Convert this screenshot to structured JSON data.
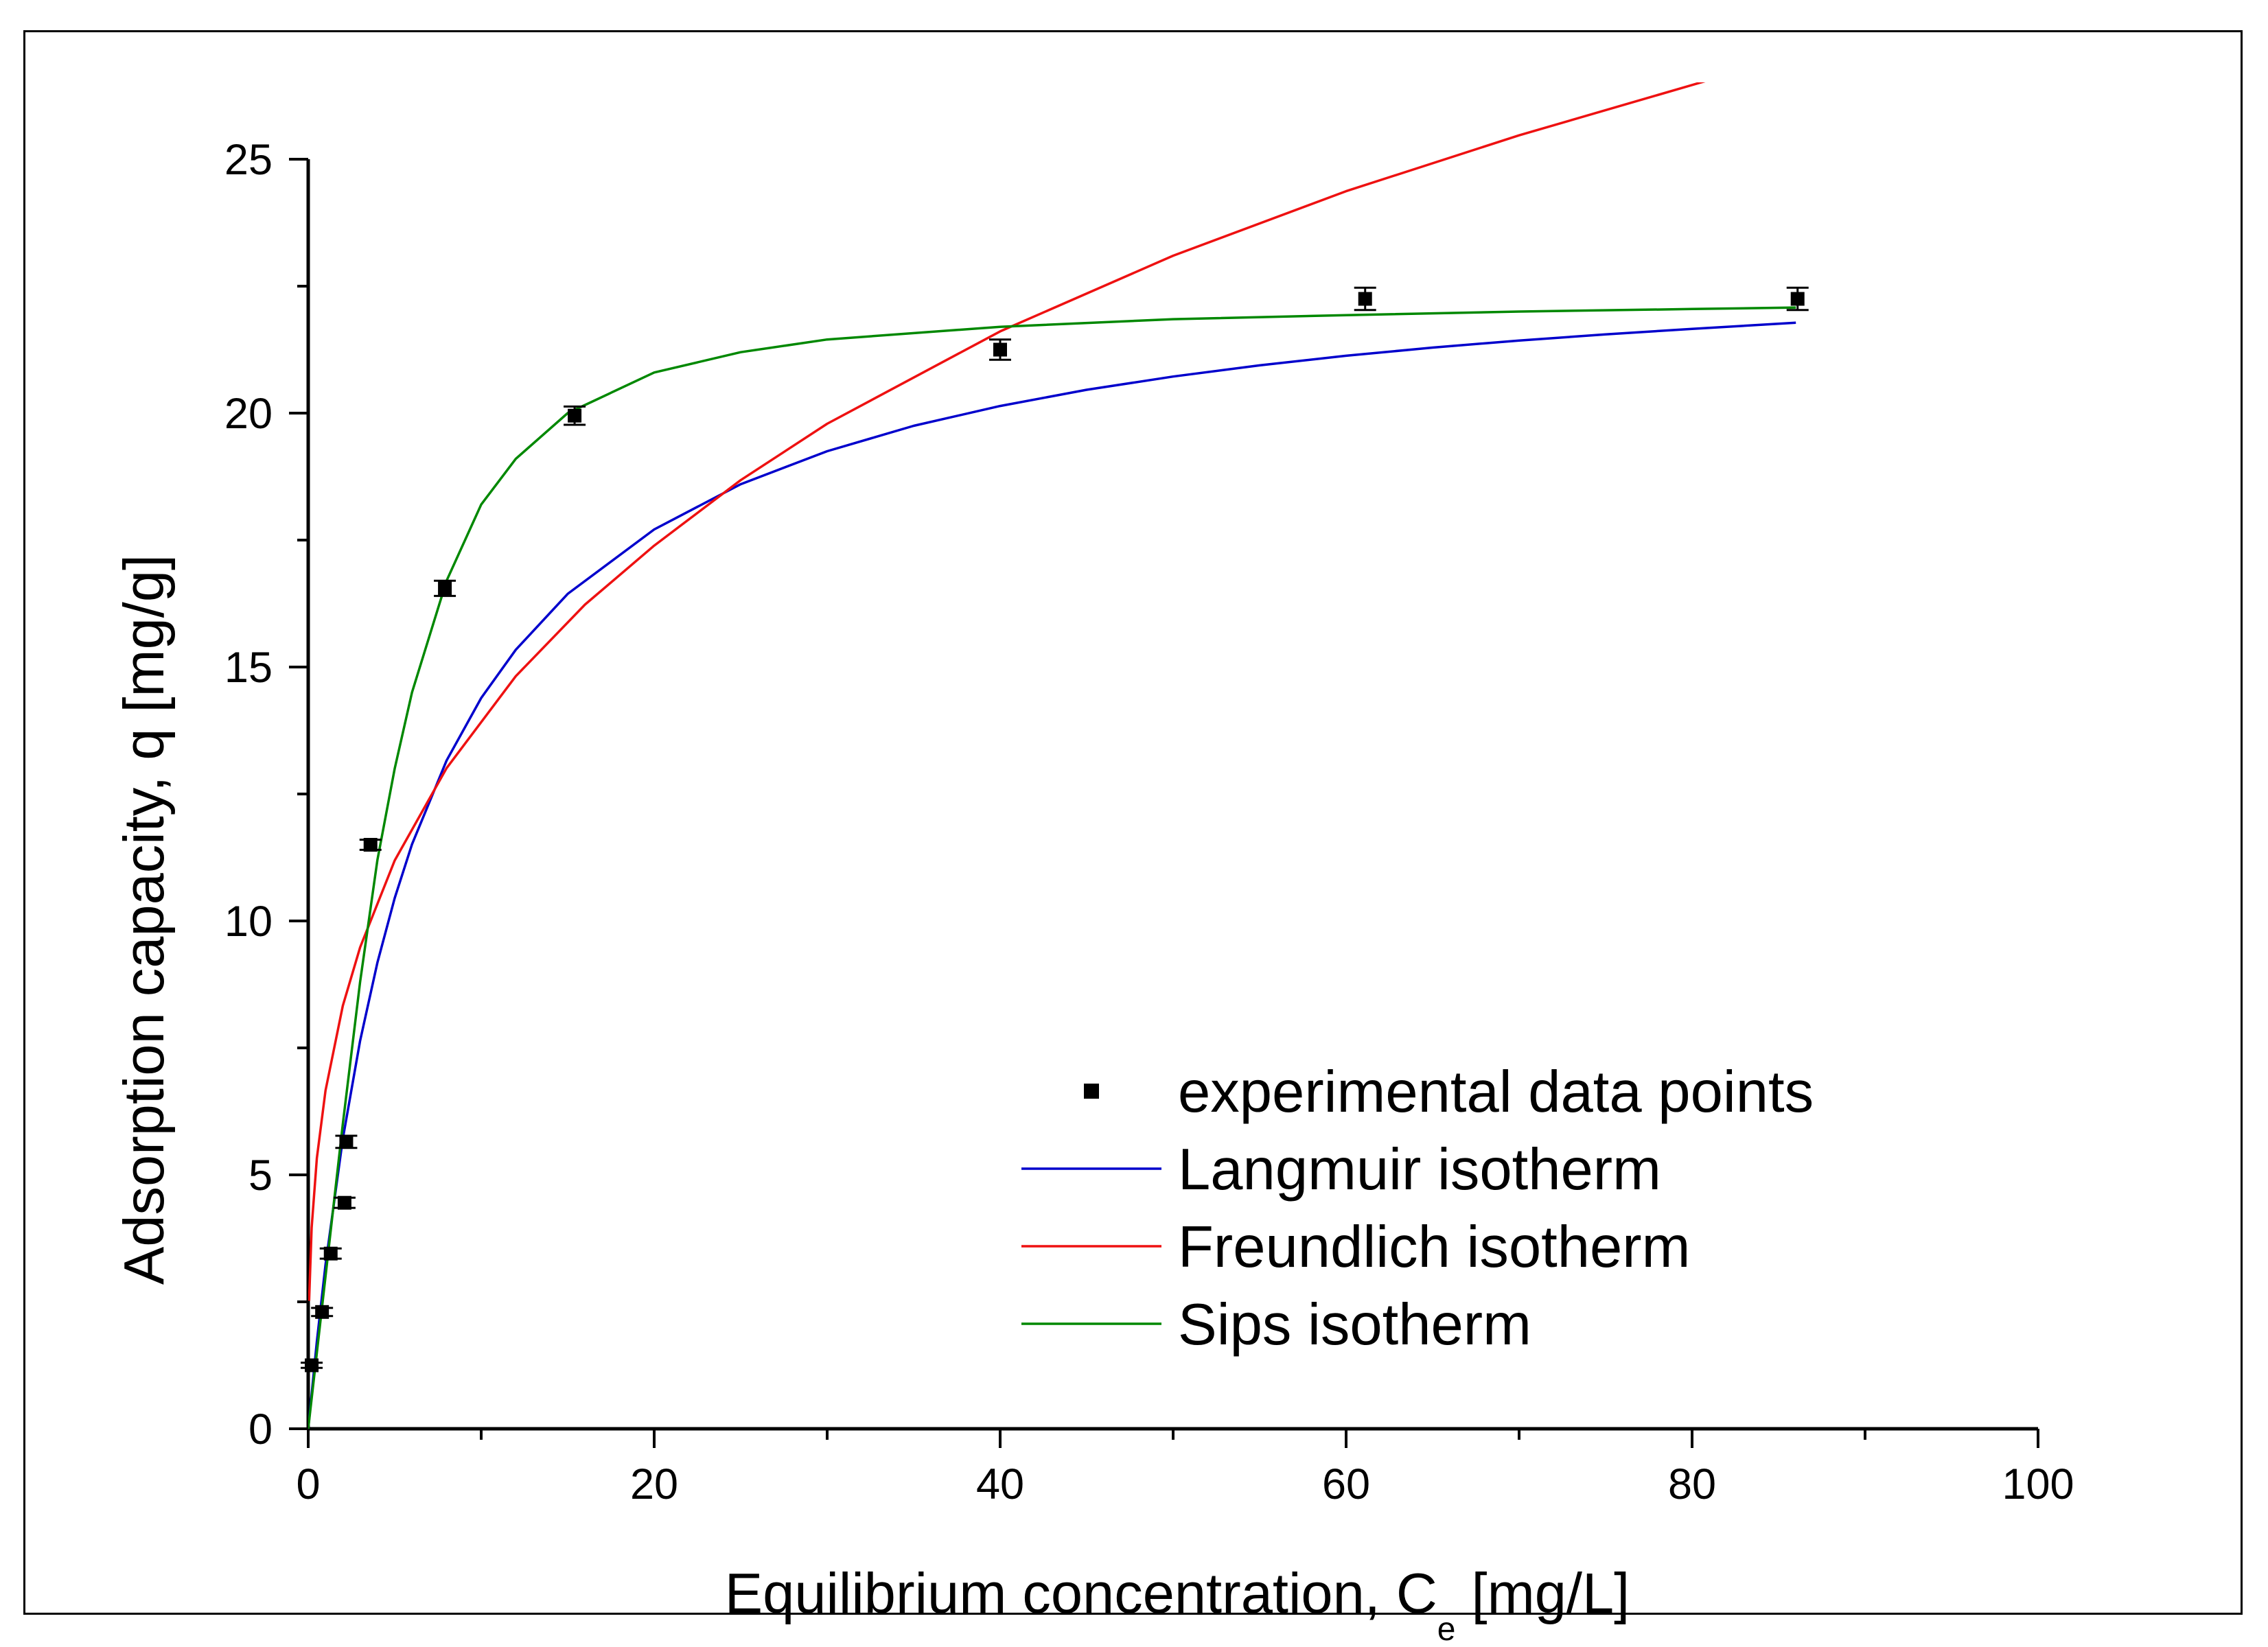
{
  "chart_data": {
    "type": "scatter",
    "xlabel": "Equilibrium concentration, C",
    "xlabel_subscript": "e",
    "xlabel_unit": " [mg/L]",
    "ylabel": "Adsorption capacity, q [mg/g]",
    "xlim": [
      0,
      100
    ],
    "ylim": [
      0,
      25
    ],
    "x_ticks": [
      0,
      20,
      40,
      60,
      80,
      100
    ],
    "y_ticks": [
      0,
      5,
      10,
      15,
      20,
      25
    ],
    "x_tick_labels": [
      "0",
      "20",
      "40",
      "60",
      "80",
      "100"
    ],
    "y_tick_labels": [
      "0",
      "5",
      "10",
      "15",
      "20",
      "25"
    ],
    "grid": false,
    "legend_position": "bottom-right",
    "series": [
      {
        "name": "experimental data points",
        "kind": "points",
        "color": "#000000",
        "x": [
          0.2,
          0.8,
          1.3,
          2.1,
          2.2,
          3.6,
          7.9,
          15.4,
          40.0,
          61.1,
          86.1
        ],
        "y": [
          1.25,
          2.3,
          3.45,
          4.45,
          5.65,
          11.5,
          16.55,
          19.95,
          21.25,
          22.25,
          22.25
        ],
        "yerr": [
          0.05,
          0.08,
          0.1,
          0.1,
          0.12,
          0.1,
          0.15,
          0.18,
          0.2,
          0.22,
          0.22
        ]
      },
      {
        "name": "Langmuir isotherm",
        "kind": "line",
        "color": "#0000cc",
        "x": [
          0,
          0.5,
          1,
          2,
          3,
          4,
          5,
          6,
          8,
          10,
          12,
          15,
          20,
          25,
          30,
          35,
          40,
          45,
          50,
          55,
          60,
          65,
          70,
          75,
          80,
          86
        ],
        "y": [
          0,
          1.72,
          3.23,
          5.71,
          7.64,
          9.18,
          10.45,
          11.51,
          13.16,
          14.39,
          15.34,
          16.44,
          17.71,
          18.6,
          19.25,
          19.75,
          20.14,
          20.46,
          20.72,
          20.94,
          21.13,
          21.29,
          21.43,
          21.55,
          21.66,
          21.78
        ]
      },
      {
        "name": "Freundlich isotherm",
        "kind": "line",
        "color": "#ee1111",
        "x": [
          0.05,
          0.2,
          0.5,
          1,
          2,
          3,
          5,
          8,
          12,
          16,
          20,
          25,
          30,
          40,
          50,
          60,
          70,
          82
        ],
        "y": [
          2.52,
          3.96,
          5.33,
          6.66,
          8.33,
          9.48,
          11.19,
          13.01,
          14.82,
          16.23,
          17.39,
          18.68,
          19.79,
          21.61,
          23.1,
          24.37,
          25.47,
          26.66
        ]
      },
      {
        "name": "Sips isotherm",
        "kind": "line",
        "color": "#008800",
        "x": [
          0,
          0.5,
          1,
          2,
          3,
          4,
          5,
          6,
          8,
          10,
          12,
          15,
          20,
          25,
          30,
          40,
          50,
          60,
          70,
          80,
          86
        ],
        "y": [
          0,
          1.5,
          3.0,
          6.0,
          8.8,
          11.2,
          13.0,
          14.5,
          16.7,
          18.2,
          19.1,
          20.0,
          20.8,
          21.2,
          21.45,
          21.7,
          21.85,
          21.93,
          22.0,
          22.05,
          22.08
        ]
      }
    ]
  }
}
